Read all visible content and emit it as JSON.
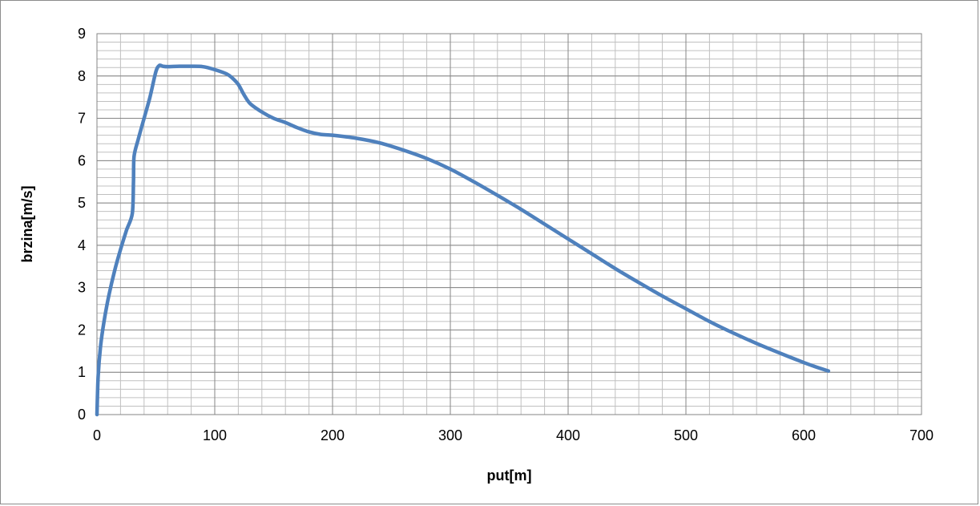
{
  "chart_data": {
    "type": "line",
    "title": "",
    "xlabel": "put[m]",
    "ylabel": "brzina[m/s]",
    "xlim": [
      0,
      700
    ],
    "ylim": [
      0,
      9
    ],
    "x_ticks": [
      0,
      100,
      200,
      300,
      400,
      500,
      600,
      700
    ],
    "y_ticks": [
      0,
      1,
      2,
      3,
      4,
      5,
      6,
      7,
      8,
      9
    ],
    "x_tick_labels": [
      "0",
      "100",
      "200",
      "300",
      "400",
      "500",
      "600",
      "700"
    ],
    "y_tick_labels": [
      "0",
      "1",
      "2",
      "3",
      "4",
      "5",
      "6",
      "7",
      "8",
      "9"
    ],
    "grid": {
      "major": true,
      "minor": true,
      "x_minor_step": 20,
      "y_minor_step": 0.2
    },
    "legend": "none",
    "colors": {
      "line": "#4f81bd",
      "grid_major": "#868686",
      "grid_minor": "#c0c0c0",
      "frame": "#8c8c8c"
    },
    "series": [
      {
        "x": [
          0,
          1,
          3,
          6,
          10,
          15,
          20,
          25,
          30,
          31,
          31.5,
          35,
          40,
          45,
          50,
          53,
          56,
          60,
          70,
          80,
          90,
          100,
          110,
          115,
          120,
          125,
          130,
          140,
          150,
          160,
          170,
          180,
          190,
          200,
          220,
          240,
          260,
          280,
          300,
          320,
          340,
          360,
          380,
          400,
          420,
          440,
          460,
          480,
          500,
          520,
          540,
          560,
          580,
          600,
          610,
          621
        ],
        "y": [
          0,
          0.9,
          1.6,
          2.2,
          2.8,
          3.4,
          3.9,
          4.35,
          4.75,
          5.5,
          6.1,
          6.5,
          7.0,
          7.5,
          8.1,
          8.25,
          8.23,
          8.22,
          8.23,
          8.23,
          8.22,
          8.15,
          8.05,
          7.95,
          7.8,
          7.55,
          7.35,
          7.15,
          7.0,
          6.9,
          6.78,
          6.68,
          6.62,
          6.6,
          6.53,
          6.42,
          6.25,
          6.05,
          5.8,
          5.5,
          5.18,
          4.85,
          4.5,
          4.15,
          3.8,
          3.45,
          3.12,
          2.8,
          2.5,
          2.2,
          1.93,
          1.68,
          1.45,
          1.23,
          1.13,
          1.03
        ]
      }
    ]
  }
}
